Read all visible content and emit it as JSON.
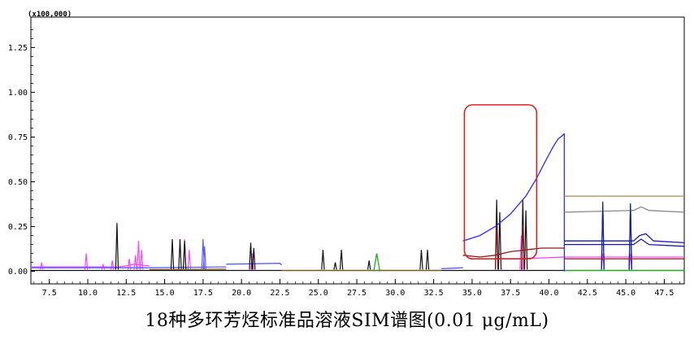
{
  "chart_data": {
    "type": "line",
    "title": "18种多环芳烃标准品溶液SIM谱图(0.01 μg/mL)",
    "y_scale_label": "(x100,000)",
    "xlabel": "",
    "ylabel": "",
    "xlim": [
      6.3,
      48.8
    ],
    "ylim": [
      -0.07,
      1.42
    ],
    "x_ticks": [
      7.5,
      10.0,
      12.5,
      15.0,
      17.5,
      20.0,
      22.5,
      25.0,
      27.5,
      30.0,
      32.5,
      35.0,
      37.5,
      40.0,
      42.5,
      45.0,
      47.5
    ],
    "x_tick_labels": [
      "7.5",
      "10.0",
      "12.5",
      "15.0",
      "17.5",
      "20.0",
      "22.5",
      "25.0",
      "27.5",
      "30.0",
      "32.5",
      "35.0",
      "37.5",
      "40.0",
      "42.5",
      "45.0",
      "47.5"
    ],
    "y_ticks": [
      0.0,
      0.25,
      0.5,
      0.75,
      1.0,
      1.25
    ],
    "y_tick_labels": [
      "0.00",
      "0.25",
      "0.50",
      "0.75",
      "1.00",
      "1.25"
    ],
    "highlight_box": {
      "x": [
        34.5,
        39.2
      ],
      "y": [
        0.07,
        0.93
      ],
      "color": "#e02020"
    },
    "series": [
      {
        "color": "#ff44ff",
        "segments": [
          {
            "x": [
              6.3,
              12.0,
              12.5,
              13.0,
              13.5,
              14.0
            ],
            "y": [
              0.025,
              0.025,
              0.03,
              0.04,
              0.035,
              0.03
            ]
          },
          {
            "x": [
              38.0,
              39.5,
              41.0
            ],
            "y": [
              0.07,
              0.075,
              0.08
            ]
          },
          {
            "x": [
              41.0,
              48.8
            ],
            "y": [
              0.08,
              0.08
            ]
          }
        ],
        "peaks": [
          [
            7.0,
            0.05
          ],
          [
            9.9,
            0.1
          ],
          [
            11.0,
            0.04
          ],
          [
            11.6,
            0.06
          ],
          [
            12.7,
            0.07
          ],
          [
            13.1,
            0.09
          ],
          [
            13.3,
            0.17
          ],
          [
            13.5,
            0.12
          ],
          [
            16.3,
            0.18
          ],
          [
            16.6,
            0.12
          ],
          [
            20.7,
            0.1
          ],
          [
            38.2,
            0.2
          ],
          [
            43.5,
            0.1
          ],
          [
            45.3,
            0.1
          ]
        ]
      },
      {
        "color": "#5b5bff",
        "segments": [
          {
            "x": [
              6.3,
              14.0,
              19.0
            ],
            "y": [
              0.02,
              0.02,
              0.025
            ]
          },
          {
            "x": [
              19.0,
              22.5,
              22.6
            ],
            "y": [
              0.04,
              0.045,
              0.035
            ]
          },
          {
            "x": [
              33.0,
              34.4
            ],
            "y": [
              0.015,
              0.02
            ]
          }
        ],
        "peaks": [
          [
            17.5,
            0.18
          ],
          [
            17.6,
            0.14
          ]
        ]
      },
      {
        "color": "#111111",
        "segments": [
          {
            "x": [
              6.3,
              48.8
            ],
            "y": [
              0.005,
              0.005
            ]
          }
        ],
        "peaks": [
          [
            11.9,
            0.27
          ],
          [
            15.5,
            0.18
          ],
          [
            16.0,
            0.18
          ],
          [
            16.3,
            0.17
          ],
          [
            20.6,
            0.16
          ],
          [
            20.8,
            0.13
          ],
          [
            25.3,
            0.12
          ],
          [
            26.1,
            0.05
          ],
          [
            26.5,
            0.12
          ],
          [
            28.3,
            0.06
          ],
          [
            31.7,
            0.12
          ],
          [
            32.1,
            0.12
          ],
          [
            36.6,
            0.4
          ],
          [
            36.8,
            0.33
          ],
          [
            38.3,
            0.4
          ],
          [
            38.5,
            0.34
          ],
          [
            43.5,
            0.37
          ],
          [
            45.3,
            0.37
          ]
        ]
      },
      {
        "color": "#7a5a20",
        "segments": [
          {
            "x": [
              14.0,
              19.0
            ],
            "y": [
              0.01,
              0.012
            ]
          },
          {
            "x": [
              22.6,
              33.0
            ],
            "y": [
              0.005,
              0.005
            ]
          }
        ],
        "peaks": []
      },
      {
        "color": "#22aa22",
        "segments": [
          {
            "x": [
              28.6,
              28.8,
              29.0
            ],
            "y": [
              0.0,
              0.1,
              0.0
            ]
          },
          {
            "x": [
              41.0,
              48.8
            ],
            "y": [
              0.005,
              0.005
            ]
          }
        ],
        "peaks": [
          [
            43.5,
            0.38
          ],
          [
            45.3,
            0.37
          ]
        ]
      },
      {
        "color": "#2b2bff",
        "segments": [
          {
            "x": [
              34.4,
              35.5,
              36.5,
              37.5,
              38.5,
              39.2,
              39.8,
              40.3,
              40.6,
              40.9,
              41.0
            ],
            "y": [
              0.17,
              0.2,
              0.25,
              0.32,
              0.42,
              0.52,
              0.62,
              0.7,
              0.74,
              0.76,
              0.77
            ]
          },
          {
            "x": [
              41.0,
              41.0
            ],
            "y": [
              0.77,
              0.0
            ]
          }
        ],
        "peaks": []
      },
      {
        "color": "#8b1a1a",
        "segments": [
          {
            "x": [
              34.4,
              35.5,
              36.5,
              37.5,
              38.5,
              39.5,
              41.0
            ],
            "y": [
              0.09,
              0.08,
              0.09,
              0.11,
              0.12,
              0.13,
              0.13
            ]
          }
        ],
        "peaks": [
          [
            36.6,
            0.25
          ],
          [
            38.3,
            0.26
          ]
        ]
      },
      {
        "color": "#a09050",
        "segments": [
          {
            "x": [
              41.0,
              48.8
            ],
            "y": [
              0.42,
              0.42
            ]
          }
        ],
        "peaks": []
      },
      {
        "color": "#888888",
        "segments": [
          {
            "x": [
              41.0,
              45.5,
              46.0,
              46.5,
              48.8
            ],
            "y": [
              0.33,
              0.34,
              0.36,
              0.34,
              0.33
            ]
          }
        ],
        "peaks": []
      },
      {
        "color": "#1a1aaa",
        "segments": [
          {
            "x": [
              41.0,
              45.5,
              45.9,
              46.3,
              46.8,
              48.8
            ],
            "y": [
              0.17,
              0.17,
              0.2,
              0.21,
              0.17,
              0.16
            ]
          },
          {
            "x": [
              41.0,
              45.5,
              46.0,
              46.5,
              48.8
            ],
            "y": [
              0.15,
              0.15,
              0.18,
              0.15,
              0.14
            ]
          }
        ],
        "peaks": [
          [
            43.5,
            0.39
          ],
          [
            45.3,
            0.38
          ]
        ]
      },
      {
        "color": "#aa2020",
        "segments": [
          {
            "x": [
              41.0,
              48.8
            ],
            "y": [
              0.07,
              0.07
            ]
          }
        ],
        "peaks": []
      }
    ]
  }
}
